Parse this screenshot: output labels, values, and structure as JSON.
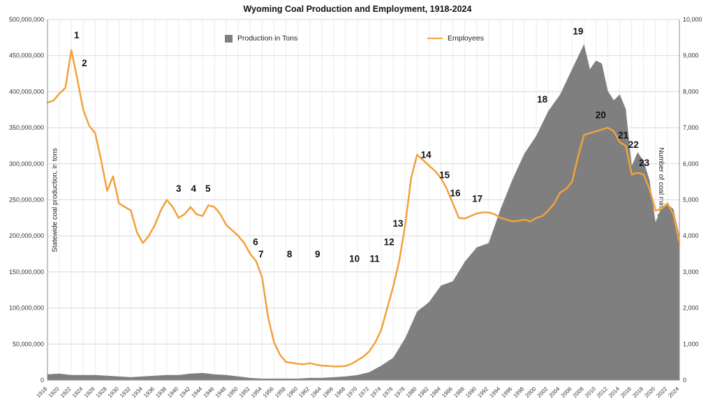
{
  "chart_data": {
    "type": "area+line",
    "title": "Wyoming Coal Production and Employment, 1918-2024",
    "left_axis": {
      "label": "Statewide coal production, in tons",
      "min": 0,
      "max": 500000000,
      "tick_step": 50000000
    },
    "right_axis": {
      "label": "Number of coal mining employees",
      "min": 0,
      "max": 10000,
      "tick_step": 1000
    },
    "x_axis": {
      "min": 1918,
      "max": 2024,
      "tick_step": 2
    },
    "grid": {
      "horizontal": true,
      "vertical": true
    },
    "colors": {
      "production_area": "#7f7f7f",
      "employees_line": "#F2A13C",
      "gridline_h": "#d9d9d9",
      "gridline_v": "#ececec",
      "axis": "#8c8c8c",
      "annotation": "#111111"
    },
    "legend": [
      {
        "label": "Production in Tons",
        "type": "area",
        "color": "#7f7f7f"
      },
      {
        "label": "Employees",
        "type": "line",
        "color": "#F2A13C"
      }
    ],
    "series": [
      {
        "name": "Production in Tons",
        "axis": "left",
        "color": "#7f7f7f",
        "points": [
          [
            1918,
            8000000
          ],
          [
            1920,
            9000000
          ],
          [
            1922,
            7000000
          ],
          [
            1924,
            7000000
          ],
          [
            1926,
            7000000
          ],
          [
            1928,
            6000000
          ],
          [
            1930,
            5000000
          ],
          [
            1932,
            4000000
          ],
          [
            1934,
            5000000
          ],
          [
            1936,
            6000000
          ],
          [
            1938,
            7000000
          ],
          [
            1940,
            7000000
          ],
          [
            1942,
            9000000
          ],
          [
            1944,
            10000000
          ],
          [
            1946,
            8000000
          ],
          [
            1948,
            7000000
          ],
          [
            1950,
            5000000
          ],
          [
            1952,
            3000000
          ],
          [
            1954,
            2000000
          ],
          [
            1956,
            2000000
          ],
          [
            1958,
            2000000
          ],
          [
            1960,
            2000000
          ],
          [
            1962,
            3000000
          ],
          [
            1964,
            3000000
          ],
          [
            1966,
            4000000
          ],
          [
            1968,
            5000000
          ],
          [
            1970,
            7000000
          ],
          [
            1972,
            11000000
          ],
          [
            1974,
            20000000
          ],
          [
            1976,
            31000000
          ],
          [
            1978,
            58000000
          ],
          [
            1980,
            95000000
          ],
          [
            1982,
            108000000
          ],
          [
            1984,
            131000000
          ],
          [
            1986,
            137000000
          ],
          [
            1988,
            164000000
          ],
          [
            1990,
            184000000
          ],
          [
            1992,
            190000000
          ],
          [
            1994,
            237000000
          ],
          [
            1996,
            278000000
          ],
          [
            1998,
            314000000
          ],
          [
            2000,
            339000000
          ],
          [
            2002,
            373000000
          ],
          [
            2004,
            396000000
          ],
          [
            2006,
            431000000
          ],
          [
            2008,
            466000000
          ],
          [
            2009,
            431000000
          ],
          [
            2010,
            443000000
          ],
          [
            2011,
            439000000
          ],
          [
            2012,
            401000000
          ],
          [
            2013,
            388000000
          ],
          [
            2014,
            396000000
          ],
          [
            2015,
            376000000
          ],
          [
            2016,
            297000000
          ],
          [
            2017,
            316000000
          ],
          [
            2018,
            304000000
          ],
          [
            2019,
            277000000
          ],
          [
            2020,
            219000000
          ],
          [
            2021,
            239000000
          ],
          [
            2022,
            244000000
          ],
          [
            2023,
            237000000
          ],
          [
            2024,
            200000000
          ]
        ]
      },
      {
        "name": "Employees",
        "axis": "right",
        "color": "#F2A13C",
        "points": [
          [
            1918,
            7700
          ],
          [
            1919,
            7750
          ],
          [
            1920,
            7950
          ],
          [
            1921,
            8100
          ],
          [
            1922,
            9150
          ],
          [
            1923,
            8350
          ],
          [
            1924,
            7500
          ],
          [
            1925,
            7050
          ],
          [
            1926,
            6850
          ],
          [
            1927,
            6100
          ],
          [
            1928,
            5250
          ],
          [
            1929,
            5650
          ],
          [
            1930,
            4900
          ],
          [
            1931,
            4800
          ],
          [
            1932,
            4700
          ],
          [
            1933,
            4100
          ],
          [
            1934,
            3800
          ],
          [
            1935,
            4000
          ],
          [
            1936,
            4300
          ],
          [
            1937,
            4700
          ],
          [
            1938,
            5000
          ],
          [
            1939,
            4800
          ],
          [
            1940,
            4500
          ],
          [
            1941,
            4600
          ],
          [
            1942,
            4800
          ],
          [
            1943,
            4600
          ],
          [
            1944,
            4550
          ],
          [
            1945,
            4850
          ],
          [
            1946,
            4800
          ],
          [
            1947,
            4600
          ],
          [
            1948,
            4300
          ],
          [
            1949,
            4150
          ],
          [
            1950,
            4000
          ],
          [
            1951,
            3800
          ],
          [
            1952,
            3500
          ],
          [
            1953,
            3300
          ],
          [
            1954,
            2850
          ],
          [
            1955,
            1750
          ],
          [
            1956,
            1050
          ],
          [
            1957,
            700
          ],
          [
            1958,
            500
          ],
          [
            1959,
            480
          ],
          [
            1960,
            450
          ],
          [
            1961,
            440
          ],
          [
            1962,
            470
          ],
          [
            1963,
            430
          ],
          [
            1964,
            400
          ],
          [
            1965,
            390
          ],
          [
            1966,
            380
          ],
          [
            1967,
            380
          ],
          [
            1968,
            390
          ],
          [
            1969,
            450
          ],
          [
            1970,
            550
          ],
          [
            1971,
            650
          ],
          [
            1972,
            800
          ],
          [
            1973,
            1050
          ],
          [
            1974,
            1400
          ],
          [
            1975,
            2000
          ],
          [
            1976,
            2600
          ],
          [
            1977,
            3300
          ],
          [
            1978,
            4300
          ],
          [
            1979,
            5600
          ],
          [
            1980,
            6250
          ],
          [
            1981,
            6100
          ],
          [
            1982,
            5950
          ],
          [
            1983,
            5800
          ],
          [
            1984,
            5600
          ],
          [
            1985,
            5300
          ],
          [
            1986,
            4900
          ],
          [
            1987,
            4500
          ],
          [
            1988,
            4480
          ],
          [
            1989,
            4550
          ],
          [
            1990,
            4620
          ],
          [
            1991,
            4650
          ],
          [
            1992,
            4650
          ],
          [
            1993,
            4600
          ],
          [
            1994,
            4500
          ],
          [
            1995,
            4450
          ],
          [
            1996,
            4400
          ],
          [
            1997,
            4420
          ],
          [
            1998,
            4450
          ],
          [
            1999,
            4400
          ],
          [
            2000,
            4500
          ],
          [
            2001,
            4550
          ],
          [
            2002,
            4700
          ],
          [
            2003,
            4900
          ],
          [
            2004,
            5200
          ],
          [
            2005,
            5300
          ],
          [
            2006,
            5500
          ],
          [
            2007,
            6200
          ],
          [
            2008,
            6800
          ],
          [
            2009,
            6850
          ],
          [
            2010,
            6900
          ],
          [
            2011,
            6950
          ],
          [
            2012,
            7000
          ],
          [
            2013,
            6900
          ],
          [
            2014,
            6600
          ],
          [
            2015,
            6500
          ],
          [
            2016,
            5700
          ],
          [
            2017,
            5750
          ],
          [
            2018,
            5700
          ],
          [
            2019,
            5300
          ],
          [
            2020,
            4700
          ],
          [
            2021,
            4750
          ],
          [
            2022,
            4900
          ],
          [
            2023,
            4600
          ],
          [
            2024,
            3800
          ]
        ]
      }
    ],
    "annotations": [
      {
        "label": "1",
        "year": 1922.9,
        "value_left": 474000000
      },
      {
        "label": "2",
        "year": 1924.2,
        "value_left": 435000000
      },
      {
        "label": "3",
        "year": 1940.0,
        "value_left": 261000000
      },
      {
        "label": "4",
        "year": 1942.5,
        "value_left": 261000000
      },
      {
        "label": "5",
        "year": 1944.9,
        "value_left": 261000000
      },
      {
        "label": "6",
        "year": 1952.9,
        "value_left": 187000000
      },
      {
        "label": "7",
        "year": 1953.8,
        "value_left": 170000000
      },
      {
        "label": "8",
        "year": 1958.6,
        "value_left": 170000000
      },
      {
        "label": "9",
        "year": 1963.3,
        "value_left": 170000000
      },
      {
        "label": "10",
        "year": 1969.5,
        "value_left": 164000000
      },
      {
        "label": "11",
        "year": 1972.9,
        "value_left": 164000000
      },
      {
        "label": "12",
        "year": 1975.3,
        "value_left": 187000000
      },
      {
        "label": "13",
        "year": 1976.8,
        "value_left": 213000000
      },
      {
        "label": "14",
        "year": 1981.5,
        "value_left": 308000000
      },
      {
        "label": "15",
        "year": 1984.6,
        "value_left": 280000000
      },
      {
        "label": "16",
        "year": 1986.4,
        "value_left": 255000000
      },
      {
        "label": "17",
        "year": 1990.1,
        "value_left": 247000000
      },
      {
        "label": "18",
        "year": 2001.0,
        "value_left": 385000000
      },
      {
        "label": "19",
        "year": 2007.0,
        "value_left": 479000000
      },
      {
        "label": "20",
        "year": 2010.8,
        "value_left": 363000000
      },
      {
        "label": "21",
        "year": 2014.6,
        "value_left": 335000000
      },
      {
        "label": "22",
        "year": 2016.3,
        "value_left": 322000000
      },
      {
        "label": "23",
        "year": 2018.1,
        "value_left": 297000000
      }
    ]
  }
}
